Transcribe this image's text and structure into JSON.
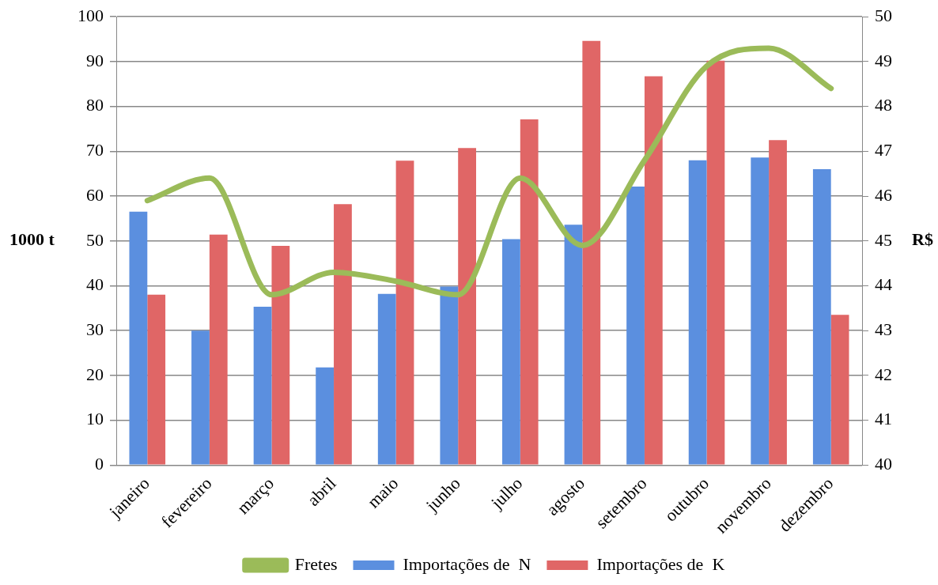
{
  "chart_data": {
    "type": "bar",
    "ylabel": "1000 t",
    "y2label": "R$",
    "categories": [
      "janeiro",
      "fevereiro",
      "março",
      "abril",
      "maio",
      "junho",
      "julho",
      "agosto",
      "setembro",
      "outubro",
      "novembro",
      "dezembro"
    ],
    "series": [
      {
        "name": "Importações de  N",
        "color": "#5b8fdf",
        "values": [
          56.5,
          30.0,
          35.3,
          21.8,
          38.2,
          39.8,
          50.4,
          53.6,
          62.1,
          68.0,
          68.6,
          66.0
        ]
      },
      {
        "name": "Importações de  K",
        "color": "#e06666",
        "values": [
          38.0,
          51.4,
          48.9,
          58.2,
          67.9,
          70.7,
          77.1,
          94.6,
          86.7,
          90.2,
          72.5,
          33.5
        ]
      },
      {
        "name": "Fretes",
        "type": "line",
        "axis": "y2",
        "color": "#9bbb59",
        "values": [
          45.9,
          46.4,
          43.8,
          44.3,
          44.1,
          43.8,
          46.4,
          44.9,
          46.8,
          48.9,
          49.3,
          48.4
        ]
      }
    ],
    "ylim": [
      0,
      100
    ],
    "yticks": [
      0,
      10,
      20,
      30,
      40,
      50,
      60,
      70,
      80,
      90,
      100
    ],
    "y2lim": [
      40,
      50
    ],
    "y2ticks": [
      40,
      41,
      42,
      43,
      44,
      45,
      46,
      47,
      48,
      49,
      50
    ],
    "grid": "y",
    "legend": "bottom",
    "marker": "none"
  }
}
